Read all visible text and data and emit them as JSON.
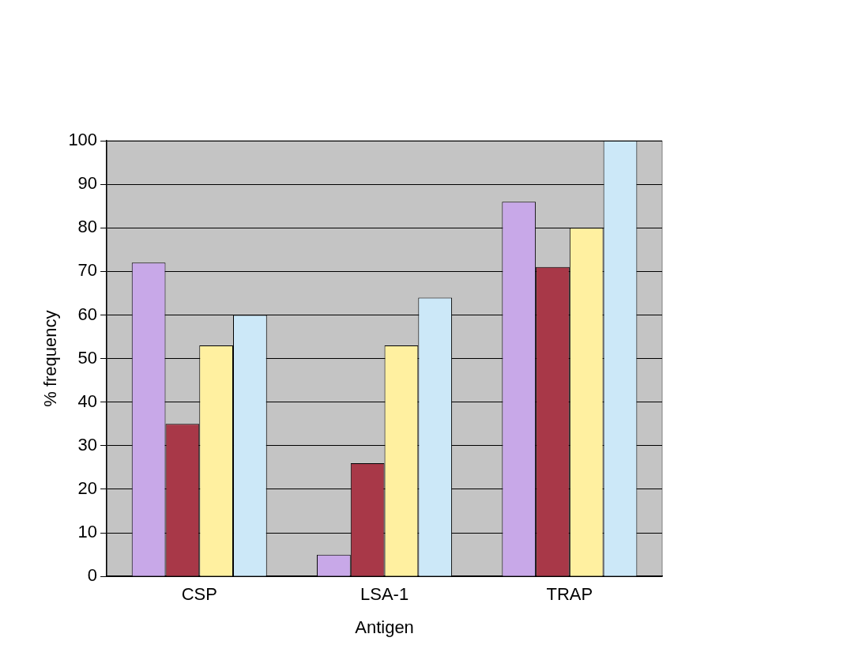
{
  "chart_data": {
    "type": "bar",
    "xlabel": "Antigen",
    "ylabel": "% frequency",
    "categories": [
      "CSP",
      "LSA-1",
      "TRAP"
    ],
    "series": [
      {
        "color": "#c8a8e8",
        "values": [
          72,
          5,
          86
        ]
      },
      {
        "color": "#a83848",
        "values": [
          35,
          26,
          71
        ]
      },
      {
        "color": "#fff0a0",
        "values": [
          53,
          53,
          80
        ]
      },
      {
        "color": "#cce8f8",
        "values": [
          60,
          64,
          100
        ]
      }
    ],
    "ylim": [
      0,
      100
    ],
    "yticks": [
      0,
      10,
      20,
      30,
      40,
      50,
      60,
      70,
      80,
      90,
      100
    ],
    "grid": "y",
    "legend": false
  }
}
